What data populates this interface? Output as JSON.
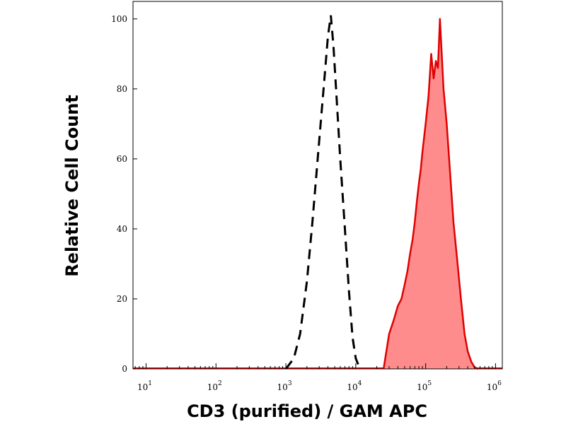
{
  "chart_data": {
    "type": "area",
    "xlabel": "CD3 (purified) / GAM APC",
    "ylabel": "Relative Cell Count",
    "xscale": "log",
    "xlim": [
      6.5,
      1250000
    ],
    "ylim": [
      0,
      105
    ],
    "grid": false,
    "legend": "none",
    "y_ticks": [
      "0",
      "20",
      "40",
      "60",
      "80",
      "100"
    ],
    "y_tick_values": [
      0,
      20,
      40,
      60,
      80,
      100
    ],
    "x_ticks": [
      {
        "base": "10",
        "exp": "1",
        "value": 10
      },
      {
        "base": "10",
        "exp": "2",
        "value": 100
      },
      {
        "base": "10",
        "exp": "3",
        "value": 1000
      },
      {
        "base": "10",
        "exp": "4",
        "value": 10000
      },
      {
        "base": "10",
        "exp": "5",
        "value": 100000
      },
      {
        "base": "10",
        "exp": "6",
        "value": 1000000
      }
    ],
    "series": [
      {
        "style": "dashed",
        "color": "#000000",
        "x": [
          1000,
          1300,
          1600,
          2000,
          2400,
          2800,
          3200,
          3600,
          4000,
          4400,
          4800,
          5300,
          6000,
          7000,
          8000,
          9000,
          10000,
          11500
        ],
        "y": [
          0,
          3,
          10,
          25,
          42,
          58,
          72,
          84,
          95,
          101,
          92,
          78,
          60,
          40,
          22,
          9,
          3,
          0
        ]
      },
      {
        "style": "filled",
        "color": "#e00000",
        "fill": "#ff8c8c",
        "x": [
          25000,
          30000,
          35000,
          40000,
          45000,
          50000,
          55000,
          60000,
          65000,
          70000,
          75000,
          80000,
          85000,
          90000,
          100000,
          110000,
          120000,
          130000,
          140000,
          150000,
          160000,
          180000,
          200000,
          220000,
          250000,
          280000,
          320000,
          360000,
          400000,
          450000,
          500000,
          560000
        ],
        "y": [
          0,
          10,
          14,
          18,
          20,
          24,
          28,
          33,
          37,
          42,
          48,
          53,
          57,
          62,
          70,
          78,
          90,
          83,
          88,
          86,
          100,
          80,
          70,
          58,
          42,
          32,
          20,
          10,
          5,
          2,
          0.5,
          0
        ]
      }
    ]
  }
}
